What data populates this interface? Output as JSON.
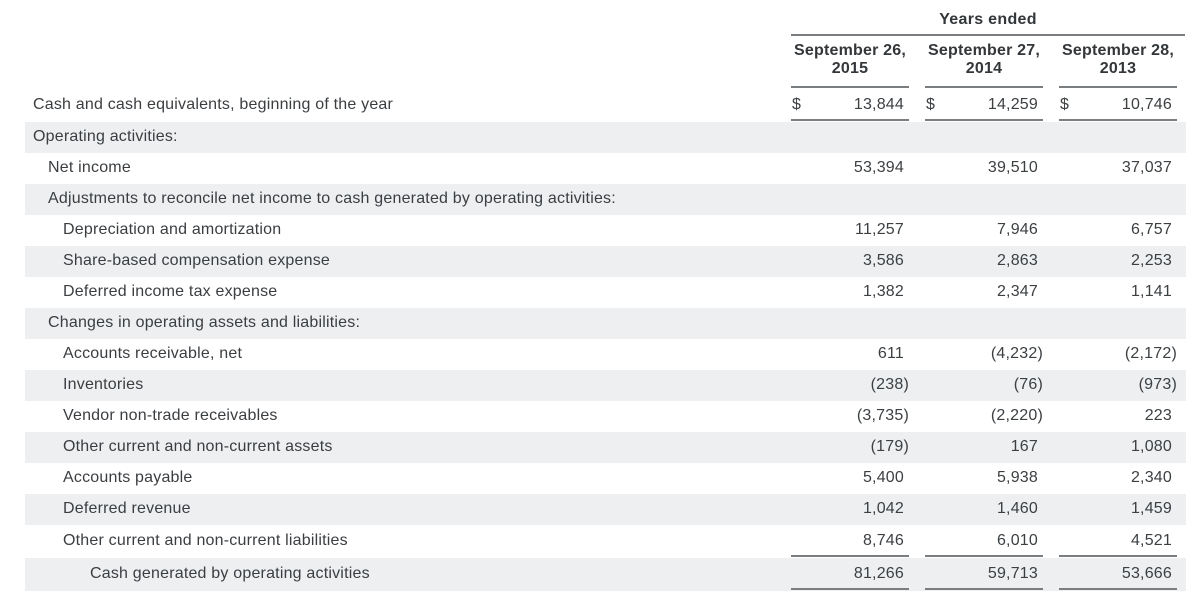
{
  "table": {
    "group_title": "Years ended",
    "currency_symbol": "$",
    "columns": [
      {
        "line1": "September 26,",
        "line2": "2015"
      },
      {
        "line1": "September 27,",
        "line2": "2014"
      },
      {
        "line1": "September 28,",
        "line2": "2013"
      }
    ],
    "rows": [
      {
        "label": "Cash and cash equivalents, beginning of the year",
        "indent": 0,
        "shaded": false,
        "dollar": true,
        "rule": true,
        "values": [
          "13,844",
          "14,259",
          "10,746"
        ]
      },
      {
        "label": "Operating activities:",
        "indent": 0,
        "shaded": true,
        "values": [
          "",
          "",
          ""
        ]
      },
      {
        "label": "Net income",
        "indent": 1,
        "shaded": false,
        "values": [
          "53,394",
          "39,510",
          "37,037"
        ]
      },
      {
        "label": "Adjustments to reconcile net income to cash generated by operating activities:",
        "indent": 1,
        "shaded": true,
        "values": [
          "",
          "",
          ""
        ]
      },
      {
        "label": "Depreciation and amortization",
        "indent": 2,
        "shaded": false,
        "values": [
          "11,257",
          "7,946",
          "6,757"
        ]
      },
      {
        "label": "Share-based compensation expense",
        "indent": 2,
        "shaded": true,
        "values": [
          "3,586",
          "2,863",
          "2,253"
        ]
      },
      {
        "label": "Deferred income tax expense",
        "indent": 2,
        "shaded": false,
        "values": [
          "1,382",
          "2,347",
          "1,141"
        ]
      },
      {
        "label": "Changes in operating assets and liabilities:",
        "indent": 1,
        "shaded": true,
        "values": [
          "",
          "",
          ""
        ]
      },
      {
        "label": "Accounts receivable, net",
        "indent": 2,
        "shaded": false,
        "values": [
          "611",
          "(4,232)",
          "(2,172)"
        ]
      },
      {
        "label": "Inventories",
        "indent": 2,
        "shaded": true,
        "values": [
          "(238)",
          "(76)",
          "(973)"
        ]
      },
      {
        "label": "Vendor non-trade receivables",
        "indent": 2,
        "shaded": false,
        "values": [
          "(3,735)",
          "(2,220)",
          "223"
        ]
      },
      {
        "label": "Other current and non-current assets",
        "indent": 2,
        "shaded": true,
        "values": [
          "(179)",
          "167",
          "1,080"
        ]
      },
      {
        "label": "Accounts payable",
        "indent": 2,
        "shaded": false,
        "values": [
          "5,400",
          "5,938",
          "2,340"
        ]
      },
      {
        "label": "Deferred revenue",
        "indent": 2,
        "shaded": true,
        "values": [
          "1,042",
          "1,460",
          "1,459"
        ]
      },
      {
        "label": "Other current and non-current liabilities",
        "indent": 2,
        "shaded": false,
        "rule": true,
        "values": [
          "8,746",
          "6,010",
          "4,521"
        ]
      },
      {
        "label": "Cash generated by operating activities",
        "indent": 3,
        "shaded": true,
        "rule": true,
        "values": [
          "81,266",
          "59,713",
          "53,666"
        ]
      }
    ],
    "colors": {
      "band": "#edeff1",
      "rule": "#7b7e80",
      "text": "#3b3e41",
      "heading": "#33373a",
      "number": "#3c4043"
    }
  }
}
